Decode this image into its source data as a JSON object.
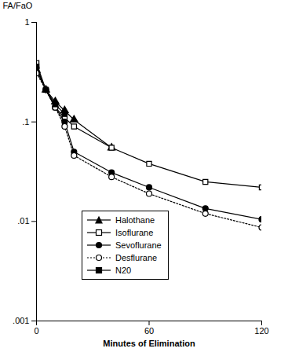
{
  "chart_data": {
    "type": "line",
    "x_label": "Minutes of Elimination",
    "y_label": "FA/FaO",
    "x": [
      0,
      5,
      10,
      15,
      20,
      40,
      60,
      90,
      120
    ],
    "series": [
      {
        "name": "Halothane",
        "color": "#000000",
        "marker": "triangle",
        "line_style": "solid",
        "values": [
          0.33,
          0.21,
          0.16,
          0.13,
          0.105,
          0.055,
          null,
          null,
          null
        ]
      },
      {
        "name": "Isoflurane",
        "color": "#000000",
        "marker": "square-open",
        "line_style": "solid",
        "values": [
          0.39,
          0.21,
          0.14,
          0.11,
          0.09,
          0.055,
          0.038,
          0.025,
          0.022
        ]
      },
      {
        "name": "Sevoflurane",
        "color": "#000000",
        "marker": "circle",
        "line_style": "solid",
        "values": [
          0.35,
          0.21,
          0.14,
          0.1,
          0.05,
          0.031,
          0.022,
          0.0135,
          0.0105
        ]
      },
      {
        "name": "Desflurane",
        "color": "#000000",
        "marker": "circle-open",
        "line_style": "dotted",
        "values": [
          0.31,
          0.21,
          0.14,
          0.09,
          0.046,
          0.028,
          0.019,
          0.012,
          0.0087
        ]
      },
      {
        "name": "N20",
        "color": "#000000",
        "marker": "square",
        "line_style": "solid",
        "values": [
          0.36,
          0.21,
          0.15,
          0.12,
          null,
          null,
          null,
          null,
          null
        ]
      }
    ],
    "xlim": [
      0,
      120
    ],
    "xticks": [
      0,
      60,
      120
    ],
    "ylim": [
      0.001,
      1
    ],
    "yticks": [
      {
        "value": 0.001,
        "label": ".001"
      },
      {
        "value": 0.01,
        "label": ".01"
      },
      {
        "value": 0.1,
        "label": ".1"
      },
      1
    ],
    "log": "y",
    "grid": false,
    "legend": "lower left"
  }
}
